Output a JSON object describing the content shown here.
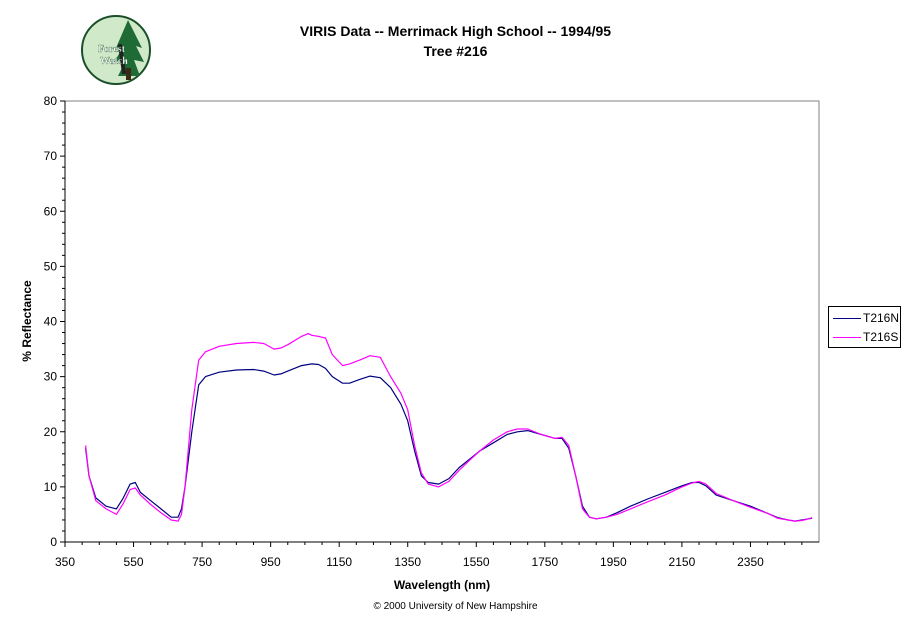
{
  "logo": {
    "text_line1": "Forest",
    "text_line2": "Watch"
  },
  "chart_data": {
    "type": "line",
    "title": "VIRIS Data -- Merrimack High School -- 1994/95",
    "subtitle": "Tree #216",
    "xlabel": "Wavelength (nm)",
    "ylabel": "% Reflectance",
    "xlim": [
      350,
      2550
    ],
    "ylim": [
      0,
      80
    ],
    "xticks": [
      350,
      550,
      750,
      950,
      1150,
      1350,
      1550,
      1750,
      1950,
      2150,
      2350
    ],
    "yticks": [
      0,
      10,
      20,
      30,
      40,
      50,
      60,
      70,
      80
    ],
    "grid": false,
    "legend": "right",
    "series": [
      {
        "name": "T216N",
        "color": "#000080",
        "x": [
          410,
          420,
          440,
          470,
          500,
          520,
          540,
          555,
          570,
          600,
          630,
          660,
          680,
          690,
          700,
          720,
          740,
          760,
          800,
          850,
          900,
          930,
          960,
          980,
          1000,
          1040,
          1070,
          1090,
          1110,
          1130,
          1160,
          1180,
          1210,
          1240,
          1270,
          1300,
          1330,
          1350,
          1370,
          1390,
          1410,
          1440,
          1470,
          1500,
          1530,
          1560,
          1600,
          1640,
          1670,
          1700,
          1740,
          1780,
          1800,
          1820,
          1840,
          1860,
          1880,
          1900,
          1930,
          1960,
          2000,
          2050,
          2100,
          2150,
          2180,
          2200,
          2220,
          2250,
          2300,
          2350,
          2400,
          2430,
          2460,
          2480,
          2500,
          2520,
          2530
        ],
        "y": [
          17.0,
          12.0,
          8.0,
          6.5,
          6.0,
          8.0,
          10.5,
          10.8,
          9.0,
          7.5,
          6.0,
          4.5,
          4.5,
          6.0,
          10.0,
          20.0,
          28.5,
          30.0,
          30.8,
          31.2,
          31.3,
          31.0,
          30.3,
          30.5,
          31.0,
          32.0,
          32.3,
          32.2,
          31.5,
          30.0,
          28.8,
          28.8,
          29.5,
          30.1,
          29.8,
          28.0,
          25.0,
          22.0,
          16.5,
          12.0,
          10.8,
          10.5,
          11.5,
          13.5,
          15.0,
          16.5,
          18.0,
          19.5,
          20.0,
          20.2,
          19.5,
          18.8,
          18.8,
          17.0,
          12.0,
          6.5,
          4.5,
          4.2,
          4.5,
          5.3,
          6.5,
          7.8,
          9.0,
          10.2,
          10.8,
          10.8,
          10.2,
          8.5,
          7.5,
          6.5,
          5.2,
          4.4,
          4.0,
          3.8,
          4.0,
          4.2,
          4.3
        ]
      },
      {
        "name": "T216S",
        "color": "#ff00ff",
        "x": [
          410,
          420,
          440,
          470,
          500,
          520,
          540,
          555,
          570,
          600,
          630,
          660,
          680,
          690,
          700,
          720,
          740,
          760,
          800,
          850,
          900,
          930,
          960,
          980,
          1000,
          1040,
          1060,
          1070,
          1090,
          1110,
          1130,
          1160,
          1180,
          1210,
          1240,
          1270,
          1300,
          1330,
          1350,
          1370,
          1390,
          1410,
          1440,
          1470,
          1500,
          1530,
          1560,
          1600,
          1640,
          1670,
          1700,
          1740,
          1780,
          1800,
          1820,
          1840,
          1860,
          1880,
          1900,
          1930,
          1960,
          2000,
          2050,
          2100,
          2150,
          2180,
          2200,
          2220,
          2250,
          2300,
          2350,
          2400,
          2430,
          2460,
          2480,
          2500,
          2520,
          2530
        ],
        "y": [
          17.5,
          12.0,
          7.5,
          6.0,
          5.0,
          7.0,
          9.5,
          9.8,
          8.5,
          6.8,
          5.3,
          4.0,
          3.8,
          5.0,
          10.0,
          24.0,
          33.0,
          34.5,
          35.5,
          36.0,
          36.2,
          36.0,
          35.0,
          35.2,
          35.8,
          37.3,
          37.8,
          37.5,
          37.3,
          37.0,
          34.0,
          32.0,
          32.3,
          33.0,
          33.8,
          33.5,
          30.0,
          27.0,
          24.0,
          17.5,
          12.5,
          10.5,
          10.0,
          11.0,
          13.0,
          14.8,
          16.5,
          18.5,
          20.0,
          20.5,
          20.5,
          19.5,
          18.8,
          19.0,
          17.5,
          12.0,
          6.0,
          4.5,
          4.2,
          4.5,
          5.0,
          6.0,
          7.3,
          8.5,
          10.0,
          10.7,
          11.0,
          10.5,
          8.8,
          7.5,
          6.3,
          5.2,
          4.3,
          4.0,
          3.8,
          3.9,
          4.2,
          4.4
        ]
      }
    ]
  },
  "copyright": "© 2000 University of New Hampshire"
}
